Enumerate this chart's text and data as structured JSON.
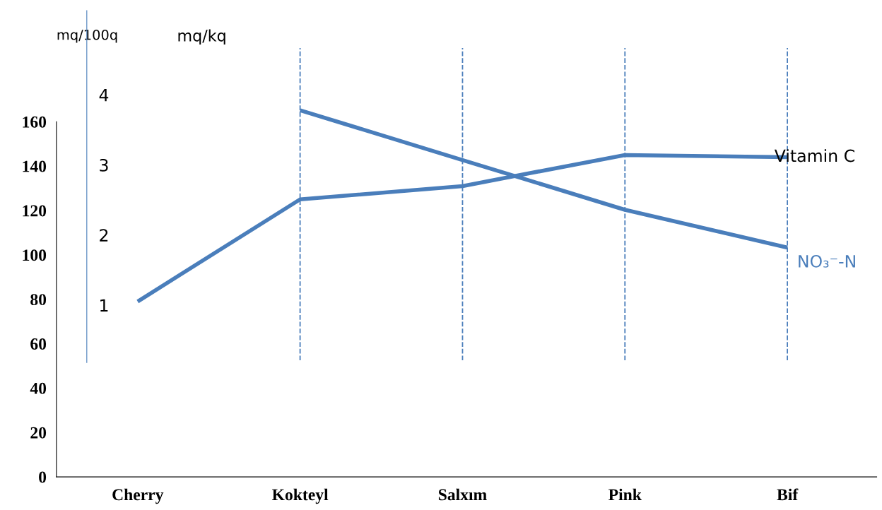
{
  "chart_data": {
    "type": "line",
    "categories": [
      "Cherry",
      "Kokteyl",
      "Salxım",
      "Pink",
      "Bif"
    ],
    "annotations": [
      "mq/100q",
      "mq/kq"
    ],
    "ylim": [
      0,
      210
    ],
    "yticks": [
      0,
      20,
      40,
      60,
      80,
      100,
      120,
      140,
      160
    ],
    "y2lim": [
      -1.45,
      5.2
    ],
    "y2ticks": [
      1,
      2,
      3,
      4
    ],
    "series": [
      {
        "name": "Vitamin C",
        "color": "#4a7ebb",
        "values": [
          79,
          125,
          131,
          145,
          144
        ]
      },
      {
        "name": "NO₃⁻-N",
        "color": "#4a7ebb",
        "axis": "y2",
        "values": [
          null,
          3.78,
          3.07,
          2.36,
          1.82
        ]
      }
    ],
    "ref_lines": [
      {
        "axis": "x",
        "value": "Kokteyl",
        "color": "#4a7ebb",
        "line_style": "dashed"
      },
      {
        "axis": "x",
        "value": "Salxım",
        "color": "#4a7ebb",
        "line_style": "dashed"
      },
      {
        "axis": "x",
        "value": "Pink",
        "color": "#4a7ebb",
        "line_style": "dashed"
      },
      {
        "axis": "x",
        "value": "Bif",
        "color": "#4a7ebb",
        "line_style": "dashed"
      }
    ],
    "grid": false,
    "legend": false,
    "marker": "none",
    "line_style": "solid"
  }
}
